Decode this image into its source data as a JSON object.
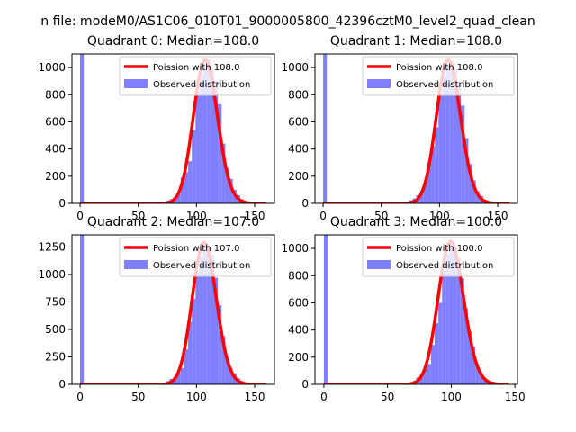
{
  "figure": {
    "suptitle": "n file: modeM0/AS1C06_010T01_9000005800_42396cztM0_level2_quad_clean"
  },
  "colors": {
    "hist_fill": "#8080ff",
    "poisson_line": "#ff0000",
    "axes": "#000000",
    "background": "#ffffff"
  },
  "chart_data": [
    {
      "type": "bar",
      "title": "Quadrant 0: Median=108.0",
      "median": 108.0,
      "xlabel": "",
      "ylabel": "",
      "xlim": [
        -7,
        167
      ],
      "ylim": [
        0,
        1100
      ],
      "xticks": [
        0,
        50,
        100,
        150
      ],
      "yticks": [
        0,
        200,
        400,
        600,
        800,
        1000
      ],
      "grid": false,
      "legend_position": "upper-right",
      "legend": [
        "Poission with 108.0",
        "Observed distribution"
      ],
      "bin_width": 3.2,
      "hist": {
        "x": [
          0,
          64,
          67.2,
          70.4,
          73.6,
          76.8,
          80,
          83.2,
          86.4,
          89.6,
          92.8,
          96,
          99.2,
          102.4,
          105.6,
          108.8,
          112,
          115.2,
          118.4,
          121.6,
          124.8,
          128,
          131.2,
          134.4,
          137.6,
          140.8,
          144,
          147.2,
          150.4,
          153.6,
          156.8
        ],
        "counts": [
          1100,
          2,
          5,
          10,
          20,
          30,
          45,
          75,
          190,
          230,
          310,
          540,
          820,
          940,
          1010,
          1060,
          990,
          900,
          730,
          440,
          260,
          180,
          100,
          60,
          30,
          15,
          8,
          4,
          3,
          2,
          1
        ]
      },
      "poisson": {
        "mean": 108.0,
        "scale": 1055,
        "x_range": [
          0,
          160
        ]
      }
    },
    {
      "type": "bar",
      "title": "Quadrant 1: Median=108.0",
      "median": 108.0,
      "xlabel": "",
      "ylabel": "",
      "xlim": [
        -7,
        167
      ],
      "ylim": [
        0,
        1100
      ],
      "xticks": [
        0,
        50,
        100,
        150
      ],
      "yticks": [
        0,
        200,
        400,
        600,
        800,
        1000
      ],
      "grid": false,
      "legend_position": "upper-right",
      "legend": [
        "Poission with 108.0",
        "Observed distribution"
      ],
      "bin_width": 3.2,
      "hist": {
        "x": [
          0,
          64,
          67.2,
          70.4,
          73.6,
          76.8,
          80,
          83.2,
          86.4,
          89.6,
          92.8,
          96,
          99.2,
          102.4,
          105.6,
          108.8,
          112,
          115.2,
          118.4,
          121.6,
          124.8,
          128,
          131.2,
          134.4,
          137.6,
          140.8,
          144,
          147.2,
          150.4,
          153.6,
          156.8
        ],
        "counts": [
          1100,
          2,
          5,
          12,
          22,
          35,
          60,
          90,
          160,
          300,
          420,
          560,
          800,
          930,
          1020,
          1050,
          990,
          880,
          720,
          480,
          290,
          170,
          90,
          55,
          25,
          12,
          6,
          3,
          2,
          1,
          1
        ]
      },
      "poisson": {
        "mean": 108.0,
        "scale": 1055,
        "x_range": [
          0,
          160
        ]
      }
    },
    {
      "type": "bar",
      "title": "Quadrant 2: Median=107.0",
      "median": 107.0,
      "xlabel": "",
      "ylabel": "",
      "xlim": [
        -7,
        167
      ],
      "ylim": [
        0,
        1360
      ],
      "xticks": [
        0,
        50,
        100,
        150
      ],
      "yticks": [
        0,
        250,
        500,
        750,
        1000,
        1250
      ],
      "grid": false,
      "legend_position": "upper-right",
      "legend": [
        "Poission with 107.0",
        "Observed distribution"
      ],
      "bin_width": 3.2,
      "hist": {
        "x": [
          0,
          64,
          67.2,
          70.4,
          73.6,
          76.8,
          80,
          83.2,
          86.4,
          89.6,
          92.8,
          96,
          99.2,
          102.4,
          105.6,
          108.8,
          112,
          115.2,
          118.4,
          121.6,
          124.8,
          128,
          131.2,
          134.4,
          137.6,
          140.8,
          144,
          147.2,
          150.4,
          153.6,
          156.8
        ],
        "counts": [
          1360,
          2,
          6,
          15,
          30,
          50,
          70,
          110,
          150,
          320,
          570,
          780,
          1020,
          1160,
          1250,
          1260,
          1180,
          970,
          720,
          440,
          240,
          150,
          100,
          55,
          30,
          15,
          8,
          4,
          2,
          1,
          1
        ]
      },
      "poisson": {
        "mean": 107.0,
        "scale": 1290,
        "x_range": [
          0,
          160
        ]
      }
    },
    {
      "type": "bar",
      "title": "Quadrant 3: Median=100.0",
      "median": 100.0,
      "xlabel": "",
      "ylabel": "",
      "xlim": [
        -7,
        152
      ],
      "ylim": [
        0,
        1100
      ],
      "xticks": [
        0,
        50,
        100,
        150
      ],
      "yticks": [
        0,
        200,
        400,
        600,
        800,
        1000
      ],
      "grid": false,
      "legend_position": "upper-right",
      "legend": [
        "Poission with 100.0",
        "Observed distribution"
      ],
      "bin_width": 2.9,
      "hist": {
        "x": [
          0,
          60.9,
          63.8,
          66.7,
          69.6,
          72.5,
          75.4,
          78.3,
          81.2,
          84.1,
          87,
          89.9,
          92.8,
          95.7,
          98.6,
          101.5,
          104.4,
          107.3,
          110.2,
          113.1,
          116,
          118.9,
          121.8,
          124.7,
          127.6,
          130.5,
          133.4,
          136.3,
          139.2,
          142.1
        ],
        "counts": [
          1100,
          3,
          6,
          12,
          25,
          50,
          70,
          110,
          150,
          290,
          450,
          600,
          830,
          960,
          1030,
          1010,
          930,
          780,
          560,
          390,
          280,
          150,
          90,
          50,
          30,
          20,
          10,
          5,
          3,
          1
        ]
      },
      "poisson": {
        "mean": 100.0,
        "scale": 1050,
        "x_range": [
          0,
          145
        ]
      }
    }
  ]
}
